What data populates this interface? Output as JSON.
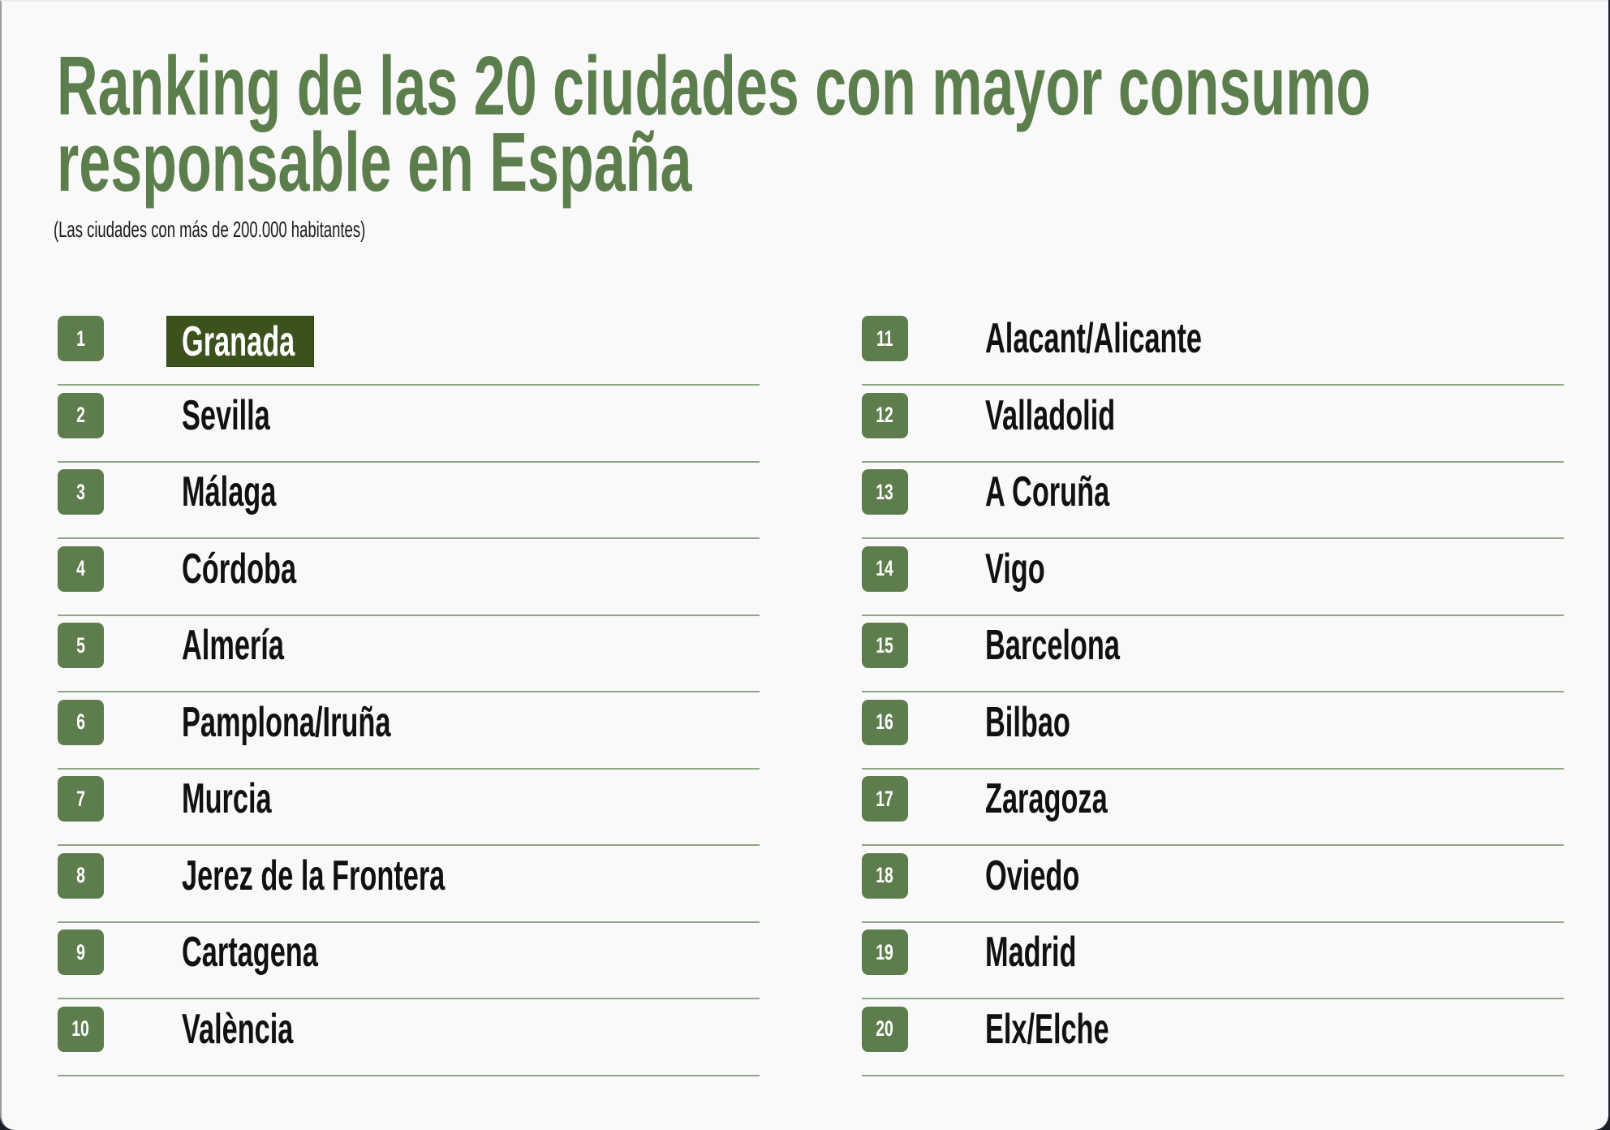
{
  "header": {
    "title_line1": "Ranking de las 20 ciudades con mayor consumo",
    "title_line2": "responsable en España",
    "subtitle": "(Las ciudades con más de 200.000 habitantes)"
  },
  "colors": {
    "title": "#5c7d4c",
    "badge": "#5e7d4d",
    "highlight": "#3b521c",
    "rule": "#8fa682",
    "text": "#111111",
    "background": "#f9f9f9"
  },
  "ranking": {
    "left": [
      {
        "rank": "1",
        "city": "Granada",
        "highlighted": true
      },
      {
        "rank": "2",
        "city": "Sevilla"
      },
      {
        "rank": "3",
        "city": "Málaga"
      },
      {
        "rank": "4",
        "city": "Córdoba"
      },
      {
        "rank": "5",
        "city": "Almería"
      },
      {
        "rank": "6",
        "city": "Pamplona/Iruña"
      },
      {
        "rank": "7",
        "city": "Murcia"
      },
      {
        "rank": "8",
        "city": "Jerez de la Frontera"
      },
      {
        "rank": "9",
        "city": "Cartagena"
      },
      {
        "rank": "10",
        "city": "València"
      }
    ],
    "right": [
      {
        "rank": "11",
        "city": "Alacant/Alicante"
      },
      {
        "rank": "12",
        "city": "Valladolid"
      },
      {
        "rank": "13",
        "city": "A Coruña"
      },
      {
        "rank": "14",
        "city": "Vigo"
      },
      {
        "rank": "15",
        "city": "Barcelona"
      },
      {
        "rank": "16",
        "city": "Bilbao"
      },
      {
        "rank": "17",
        "city": "Zaragoza"
      },
      {
        "rank": "18",
        "city": "Oviedo"
      },
      {
        "rank": "19",
        "city": "Madrid"
      },
      {
        "rank": "20",
        "city": "Elx/Elche"
      }
    ]
  }
}
